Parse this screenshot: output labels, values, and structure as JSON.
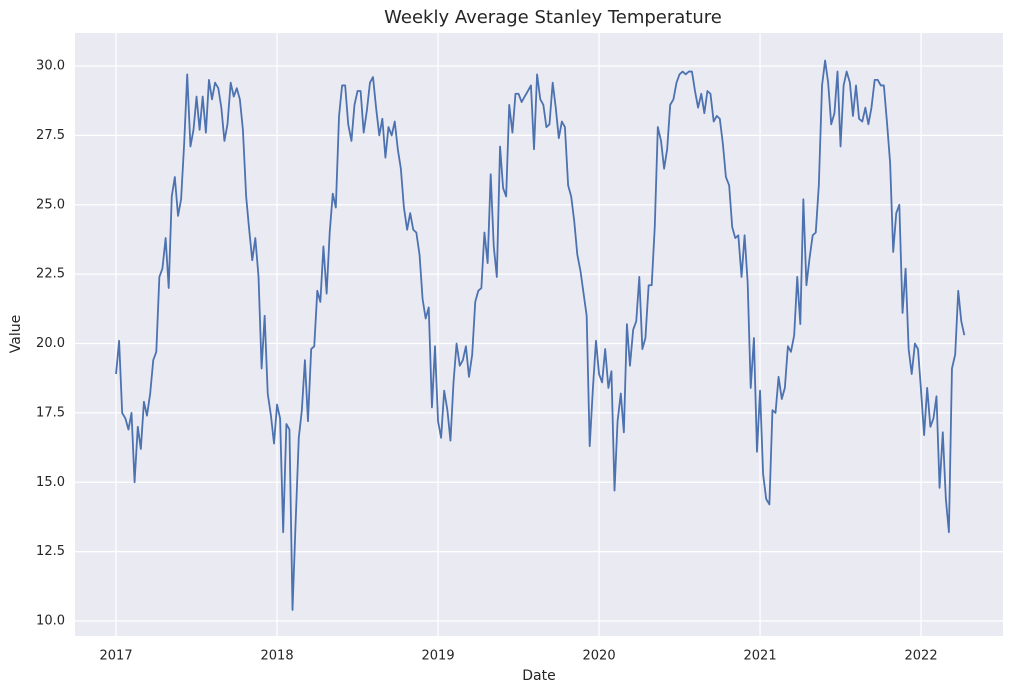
{
  "chart_data": {
    "type": "line",
    "title": "Weekly Average Stanley Temperature",
    "x_label": "Date",
    "y_label": "Value",
    "color": "#4c72b0",
    "grid": true,
    "x": [
      2017,
      2017.019,
      2017.038,
      2017.058,
      2017.077,
      2017.096,
      2017.115,
      2017.135,
      2017.154,
      2017.173,
      2017.192,
      2017.212,
      2017.231,
      2017.25,
      2017.269,
      2017.288,
      2017.308,
      2017.327,
      2017.346,
      2017.365,
      2017.385,
      2017.404,
      2017.423,
      2017.442,
      2017.462,
      2017.481,
      2017.5,
      2017.519,
      2017.538,
      2017.558,
      2017.577,
      2017.596,
      2017.615,
      2017.635,
      2017.654,
      2017.673,
      2017.692,
      2017.712,
      2017.731,
      2017.75,
      2017.769,
      2017.788,
      2017.808,
      2017.827,
      2017.846,
      2017.865,
      2017.885,
      2017.904,
      2017.923,
      2017.942,
      2017.962,
      2017.981,
      2018,
      2018.019,
      2018.038,
      2018.058,
      2018.077,
      2018.096,
      2018.115,
      2018.135,
      2018.154,
      2018.173,
      2018.192,
      2018.212,
      2018.231,
      2018.25,
      2018.269,
      2018.288,
      2018.308,
      2018.327,
      2018.346,
      2018.365,
      2018.385,
      2018.404,
      2018.423,
      2018.442,
      2018.462,
      2018.481,
      2018.5,
      2018.519,
      2018.538,
      2018.558,
      2018.577,
      2018.596,
      2018.615,
      2018.635,
      2018.654,
      2018.673,
      2018.692,
      2018.712,
      2018.731,
      2018.75,
      2018.769,
      2018.788,
      2018.808,
      2018.827,
      2018.846,
      2018.865,
      2018.885,
      2018.904,
      2018.923,
      2018.942,
      2018.962,
      2018.981,
      2019,
      2019.019,
      2019.038,
      2019.058,
      2019.077,
      2019.096,
      2019.115,
      2019.135,
      2019.154,
      2019.173,
      2019.192,
      2019.212,
      2019.231,
      2019.25,
      2019.269,
      2019.288,
      2019.308,
      2019.327,
      2019.346,
      2019.365,
      2019.385,
      2019.404,
      2019.423,
      2019.442,
      2019.462,
      2019.481,
      2019.5,
      2019.519,
      2019.538,
      2019.558,
      2019.577,
      2019.596,
      2019.615,
      2019.635,
      2019.654,
      2019.673,
      2019.692,
      2019.712,
      2019.731,
      2019.75,
      2019.769,
      2019.788,
      2019.808,
      2019.827,
      2019.846,
      2019.865,
      2019.885,
      2019.904,
      2019.923,
      2019.942,
      2019.962,
      2019.981,
      2020,
      2020.019,
      2020.038,
      2020.058,
      2020.077,
      2020.096,
      2020.115,
      2020.135,
      2020.154,
      2020.173,
      2020.192,
      2020.212,
      2020.231,
      2020.25,
      2020.269,
      2020.288,
      2020.308,
      2020.327,
      2020.346,
      2020.365,
      2020.385,
      2020.404,
      2020.423,
      2020.442,
      2020.462,
      2020.481,
      2020.5,
      2020.519,
      2020.538,
      2020.558,
      2020.577,
      2020.596,
      2020.615,
      2020.635,
      2020.654,
      2020.673,
      2020.692,
      2020.712,
      2020.731,
      2020.75,
      2020.769,
      2020.788,
      2020.808,
      2020.827,
      2020.846,
      2020.865,
      2020.885,
      2020.904,
      2020.923,
      2020.942,
      2020.962,
      2020.981,
      2021,
      2021.019,
      2021.038,
      2021.058,
      2021.077,
      2021.096,
      2021.115,
      2021.135,
      2021.154,
      2021.173,
      2021.192,
      2021.212,
      2021.231,
      2021.25,
      2021.269,
      2021.288,
      2021.308,
      2021.327,
      2021.346,
      2021.365,
      2021.385,
      2021.404,
      2021.423,
      2021.442,
      2021.462,
      2021.481,
      2021.5,
      2021.519,
      2021.538,
      2021.558,
      2021.577,
      2021.596,
      2021.615,
      2021.635,
      2021.654,
      2021.673,
      2021.692,
      2021.712,
      2021.731,
      2021.75,
      2021.769,
      2021.788,
      2021.808,
      2021.827,
      2021.846,
      2021.865,
      2021.885,
      2021.904,
      2021.923,
      2021.942,
      2021.962,
      2021.981,
      2022,
      2022.019,
      2022.038,
      2022.058,
      2022.077,
      2022.096,
      2022.115,
      2022.135,
      2022.154,
      2022.173,
      2022.192,
      2022.212,
      2022.231,
      2022.25,
      2022.269
    ],
    "values": [
      18.9,
      20.1,
      17.5,
      17.3,
      16.9,
      17.5,
      15.0,
      17.0,
      16.2,
      17.9,
      17.4,
      18.2,
      19.4,
      19.7,
      22.4,
      22.7,
      23.8,
      22.0,
      25.3,
      26.0,
      24.6,
      25.2,
      27.2,
      29.7,
      27.1,
      27.7,
      28.9,
      27.7,
      28.9,
      27.6,
      29.5,
      28.8,
      29.4,
      29.2,
      28.5,
      27.3,
      27.9,
      29.4,
      28.9,
      29.2,
      28.8,
      27.7,
      25.3,
      24.1,
      23.0,
      23.8,
      22.4,
      19.1,
      21.0,
      18.2,
      17.4,
      16.4,
      17.8,
      17.3,
      13.2,
      17.1,
      16.9,
      10.4,
      13.5,
      16.6,
      17.6,
      19.4,
      17.2,
      19.8,
      19.9,
      21.9,
      21.5,
      23.5,
      21.8,
      24.0,
      25.4,
      24.9,
      28.2,
      29.3,
      29.3,
      27.9,
      27.3,
      28.6,
      29.1,
      29.1,
      27.6,
      28.4,
      29.4,
      29.6,
      28.5,
      27.5,
      28.1,
      26.7,
      27.8,
      27.5,
      28.0,
      27.0,
      26.3,
      24.9,
      24.1,
      24.7,
      24.1,
      24.0,
      23.2,
      21.6,
      20.9,
      21.3,
      17.7,
      19.9,
      17.2,
      16.6,
      18.3,
      17.6,
      16.5,
      18.6,
      20.0,
      19.2,
      19.4,
      19.9,
      18.8,
      19.6,
      21.5,
      21.9,
      22.0,
      24.0,
      22.9,
      26.1,
      23.5,
      22.4,
      27.1,
      25.6,
      25.3,
      28.6,
      27.6,
      29.0,
      29.0,
      28.7,
      28.9,
      29.1,
      29.3,
      27.0,
      29.7,
      28.8,
      28.6,
      27.8,
      27.9,
      29.4,
      28.5,
      27.4,
      28.0,
      27.8,
      25.7,
      25.3,
      24.4,
      23.2,
      22.6,
      21.8,
      21.0,
      16.3,
      18.4,
      20.1,
      18.9,
      18.6,
      19.8,
      18.4,
      19.0,
      14.7,
      17.2,
      18.2,
      16.8,
      20.7,
      19.2,
      20.5,
      20.8,
      22.4,
      19.8,
      20.2,
      22.1,
      22.1,
      24.2,
      27.8,
      27.3,
      26.3,
      27.0,
      28.6,
      28.8,
      29.4,
      29.7,
      29.8,
      29.7,
      29.8,
      29.8,
      29.1,
      28.5,
      29.0,
      28.3,
      29.1,
      29.0,
      28.0,
      28.2,
      28.1,
      27.2,
      26.0,
      25.7,
      24.2,
      23.8,
      23.9,
      22.4,
      23.9,
      22.2,
      18.4,
      20.2,
      16.1,
      18.3,
      15.3,
      14.4,
      14.2,
      17.6,
      17.5,
      18.8,
      18.0,
      18.4,
      19.9,
      19.7,
      20.3,
      22.4,
      20.7,
      25.2,
      22.1,
      23.1,
      23.9,
      24.0,
      25.7,
      29.3,
      30.2,
      29.4,
      27.9,
      28.3,
      29.8,
      27.1,
      29.3,
      29.8,
      29.4,
      28.2,
      29.3,
      28.1,
      28.0,
      28.5,
      27.9,
      28.5,
      29.5,
      29.5,
      29.3,
      29.3,
      28.0,
      26.5,
      23.3,
      24.7,
      25.0,
      21.1,
      22.7,
      19.8,
      18.9,
      20.0,
      19.8,
      18.3,
      16.7,
      18.4,
      17.0,
      17.3,
      18.1,
      14.8,
      16.8,
      14.4,
      13.2,
      19.1,
      19.6,
      21.9,
      20.8,
      20.3
    ],
    "xlim": [
      2016.745,
      2022.509
    ],
    "xticks": [
      2017,
      2018,
      2019,
      2020,
      2021,
      2022
    ],
    "ylim": [
      9.46,
      31.19
    ],
    "yticks": [
      {
        "value": 10,
        "label": "10.0"
      },
      12.5,
      {
        "value": 15,
        "label": "15.0"
      },
      17.5,
      {
        "value": 20,
        "label": "20.0"
      },
      22.5,
      {
        "value": 25,
        "label": "25.0"
      },
      27.5,
      {
        "value": 30,
        "label": "30.0"
      }
    ]
  }
}
